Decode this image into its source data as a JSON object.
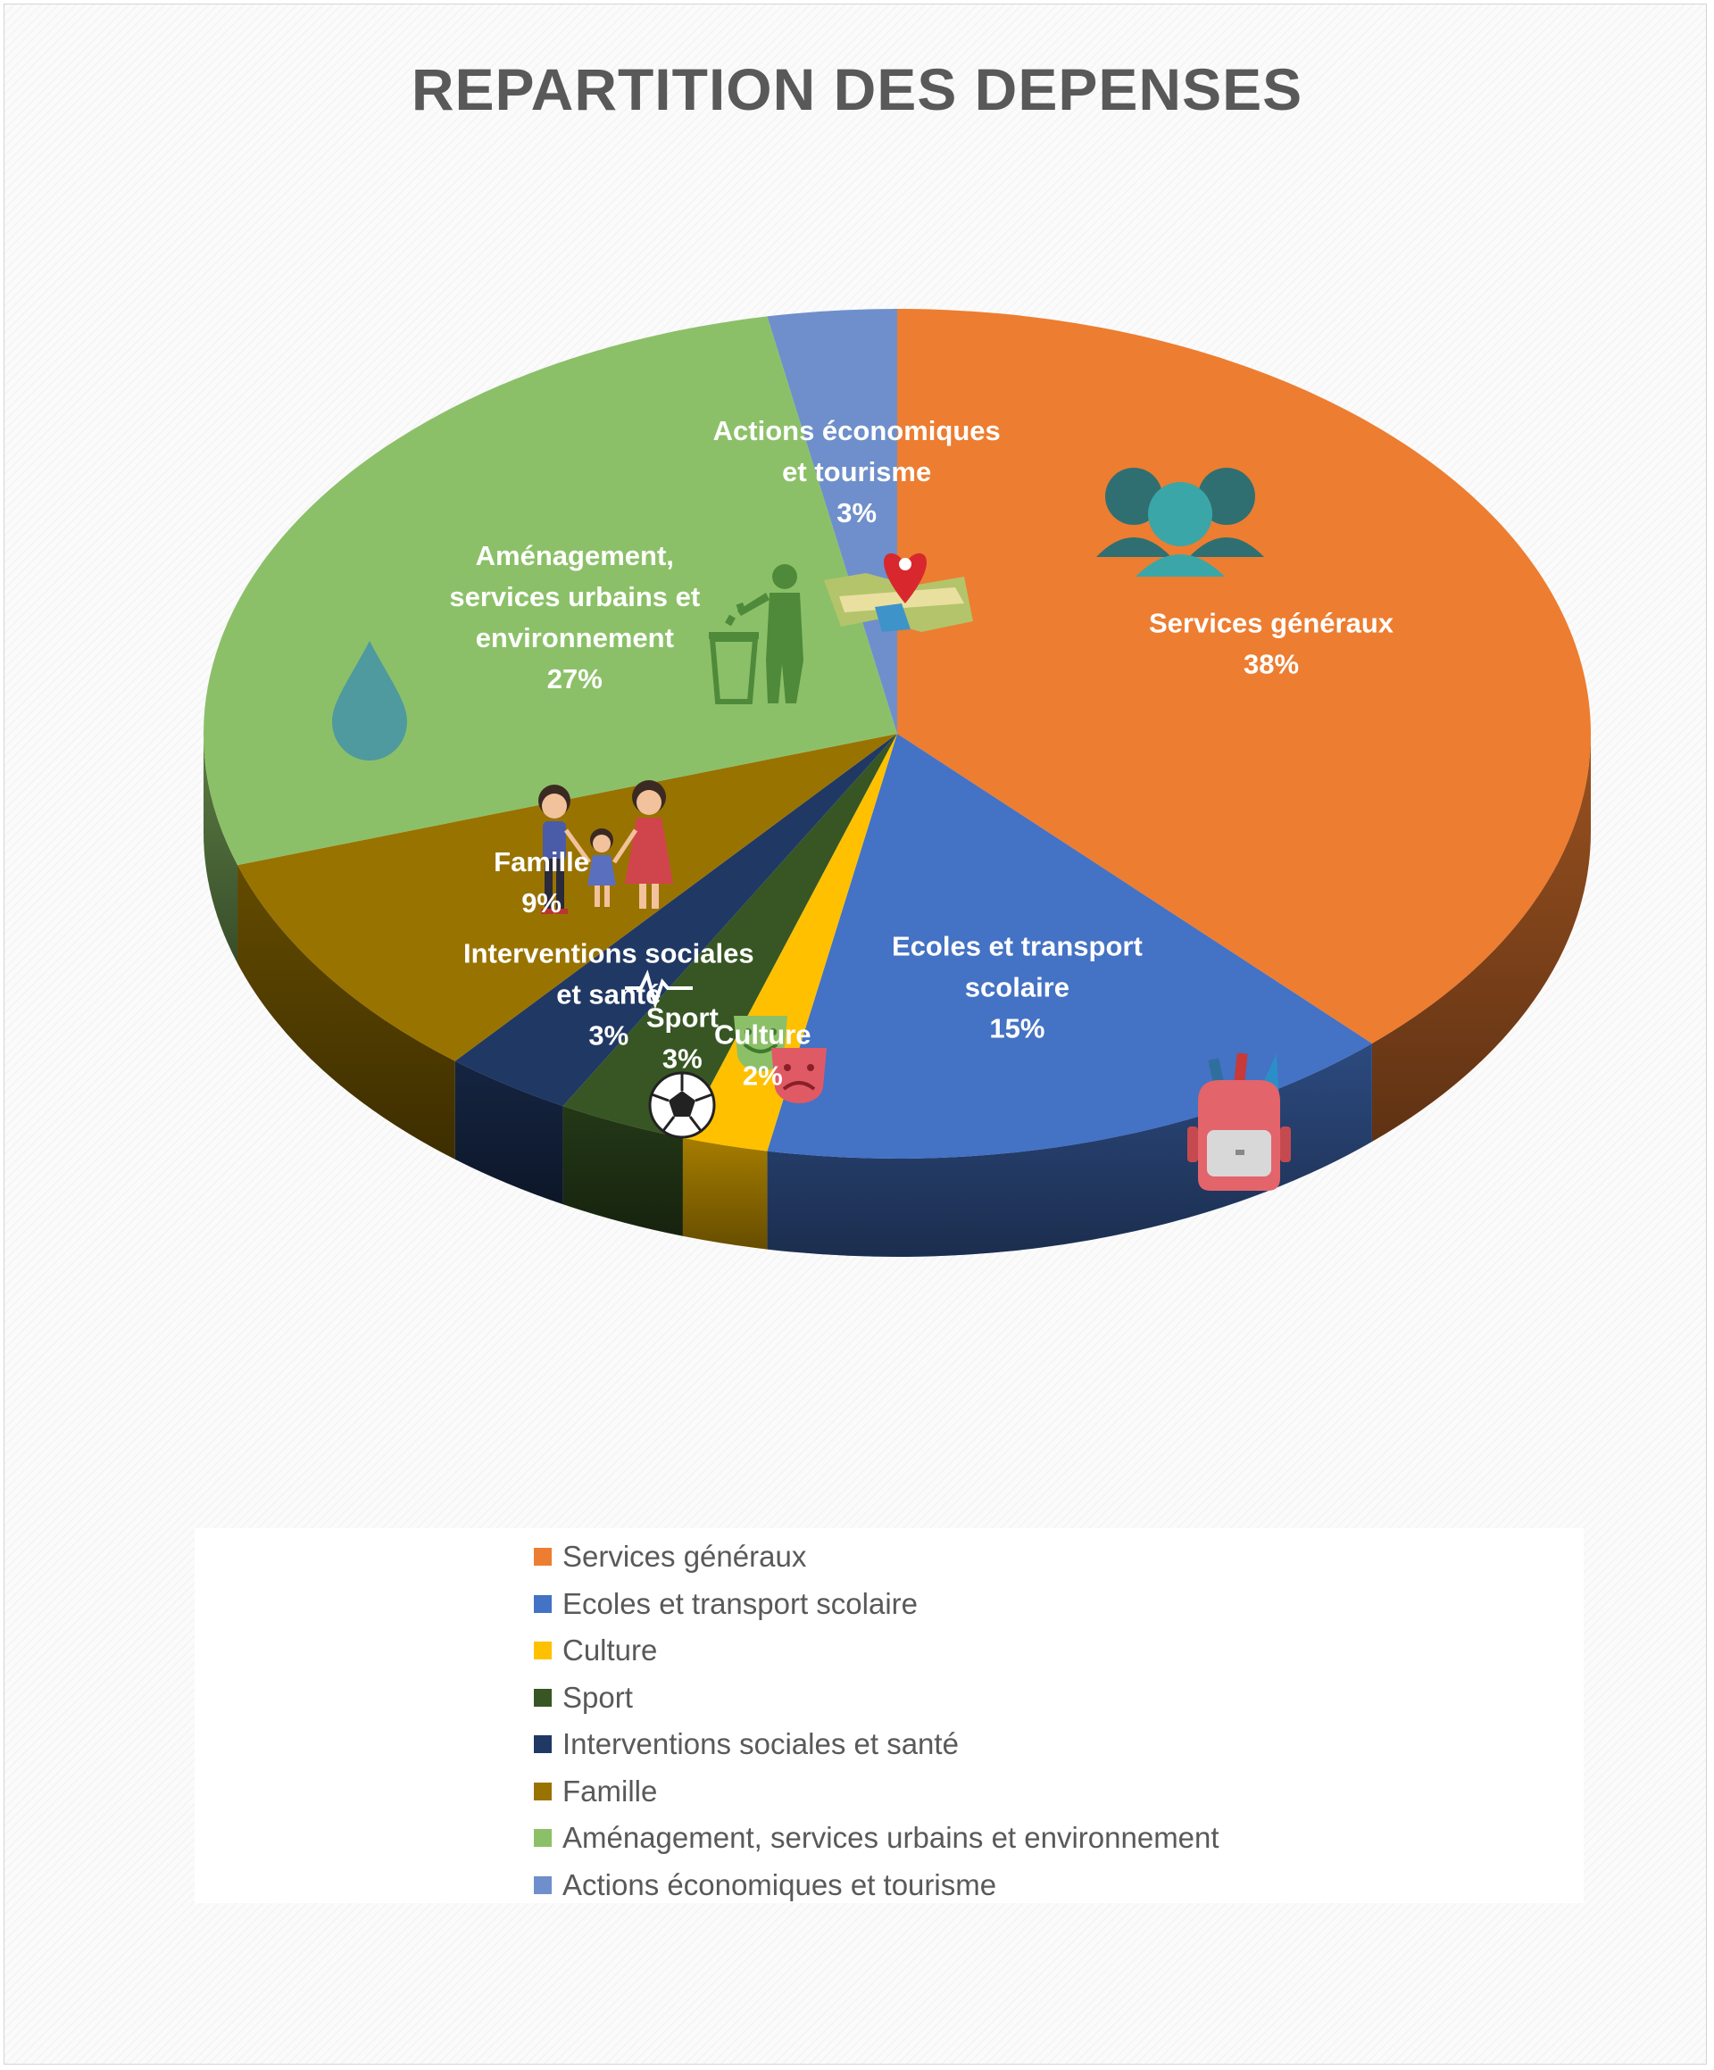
{
  "chart_data": {
    "type": "pie",
    "title": "REPARTITION DES DEPENSES",
    "slices": [
      {
        "label": "Services généraux",
        "label_lines": [
          "Services généraux"
        ],
        "value": 38,
        "value_label": "38%",
        "color": "#ED7D31",
        "icon": "people-group-icon"
      },
      {
        "label": "Ecoles et transport scolaire",
        "label_lines": [
          "Ecoles et transport",
          "scolaire"
        ],
        "value": 15,
        "value_label": "15%",
        "color": "#4472C4",
        "icon": "school-backpack-icon"
      },
      {
        "label": "Culture",
        "label_lines": [
          "Culture"
        ],
        "value": 2,
        "value_label": "2%",
        "color": "#FFC000",
        "icon": "theater-masks-icon"
      },
      {
        "label": "Sport",
        "label_lines": [
          "Sport"
        ],
        "value": 3,
        "value_label": "3%",
        "color": "#375623",
        "icon": "soccer-ball-icon"
      },
      {
        "label": "Interventions sociales et santé",
        "label_lines": [
          "Interventions sociales",
          "et santé"
        ],
        "value": 3,
        "value_label": "3%",
        "color": "#203864",
        "icon": "heart-pulse-icon"
      },
      {
        "label": "Famille",
        "label_lines": [
          "Famille"
        ],
        "value": 9,
        "value_label": "9%",
        "color": "#997300",
        "icon": "family-icon"
      },
      {
        "label": "Aménagement, services urbains et environnement",
        "label_lines": [
          "Aménagement,",
          "services urbains et",
          "environnement"
        ],
        "value": 27,
        "value_label": "27%",
        "color": "#8CC068",
        "icon": "recycling-person-icon"
      },
      {
        "label": "Actions économiques et tourisme",
        "label_lines": [
          "Actions économiques",
          "et tourisme"
        ],
        "value": 3,
        "value_label": "3%",
        "color": "#6E8FCB",
        "icon": "map-pin-icon"
      }
    ],
    "legend": {
      "position": "bottom",
      "entries": [
        {
          "label": "Services généraux",
          "color": "#ED7D31"
        },
        {
          "label": "Ecoles et transport scolaire",
          "color": "#4472C4"
        },
        {
          "label": "Culture",
          "color": "#FFC000"
        },
        {
          "label": "Sport",
          "color": "#375623"
        },
        {
          "label": "Interventions sociales et santé",
          "color": "#203864"
        },
        {
          "label": "Famille",
          "color": "#997300"
        },
        {
          "label": "Aménagement, services urbains et environnement",
          "color": "#8CC068"
        },
        {
          "label": "Actions économiques et tourisme",
          "color": "#6E8FCB"
        }
      ]
    },
    "decorations": [
      "water-drop-icon"
    ]
  }
}
